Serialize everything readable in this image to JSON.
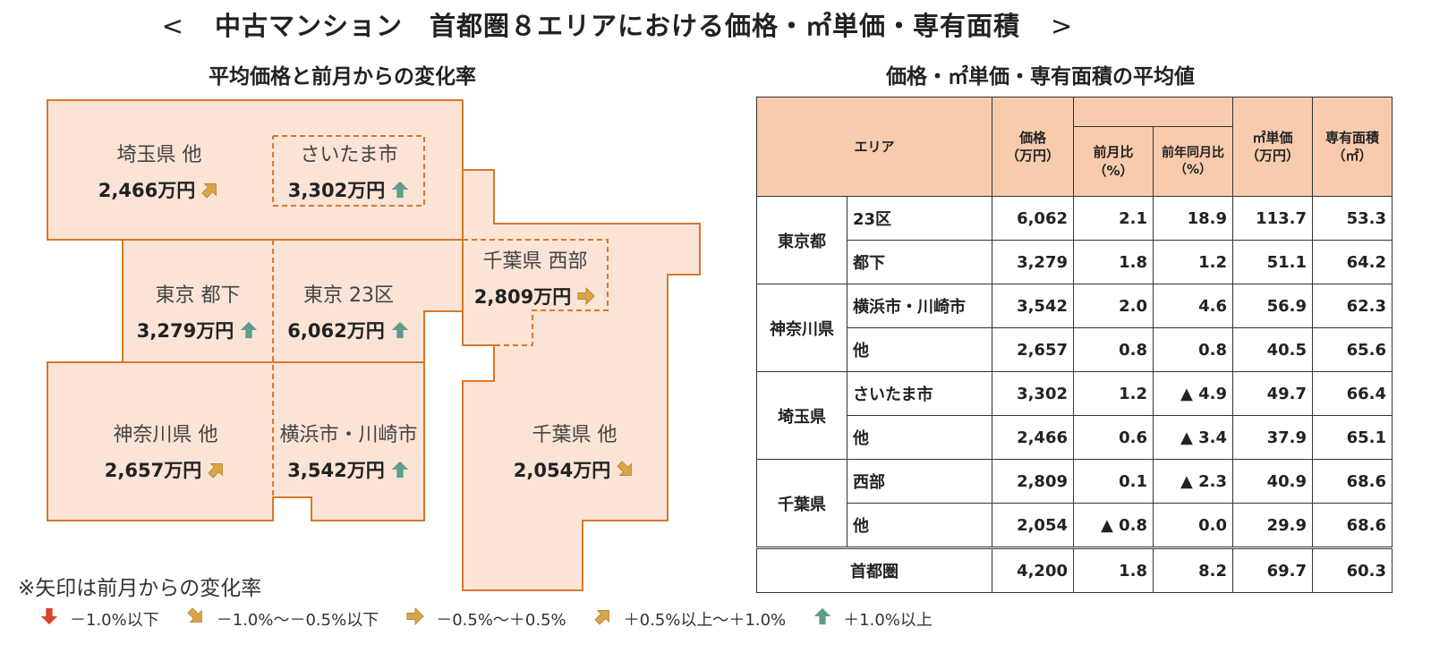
{
  "page_title": {
    "left_bracket": "<",
    "text": "中古マンション　首都圏８エリアにおける価格・㎡単価・専有面積",
    "right_bracket": ">"
  },
  "colors": {
    "region_fill": "#fbe3d6",
    "region_border": "#d9782a",
    "up_strong": "#5e9c8c",
    "up": "#d9a54a",
    "flat": "#d9a54a",
    "down": "#d9a54a",
    "down_strong": "#d8462a",
    "header_fill": "#f8cbad"
  },
  "chart_data": {
    "type": "map",
    "title": "平均価格と前月からの変化率",
    "regions": [
      {
        "key": "saitama-other",
        "name": "埼玉県 他",
        "price": "2,466万円",
        "trend": "up"
      },
      {
        "key": "saitama-city",
        "name": "さいたま市",
        "price": "3,302万円",
        "trend": "up_strong"
      },
      {
        "key": "tokyo-tokashita",
        "name": "東京 都下",
        "price": "3,279万円",
        "trend": "up_strong"
      },
      {
        "key": "tokyo-23",
        "name": "東京 23区",
        "price": "6,062万円",
        "trend": "up_strong"
      },
      {
        "key": "chiba-west",
        "name": "千葉県 西部",
        "price": "2,809万円",
        "trend": "flat"
      },
      {
        "key": "kanagawa-other",
        "name": "神奈川県 他",
        "price": "2,657万円",
        "trend": "up"
      },
      {
        "key": "yokohama-kawasaki",
        "name": "横浜市・川崎市",
        "price": "3,542万円",
        "trend": "up_strong"
      },
      {
        "key": "chiba-other",
        "name": "千葉県 他",
        "price": "2,054万円",
        "trend": "down"
      }
    ]
  },
  "note": "※矢印は前月からの変化率",
  "legend": [
    {
      "trend": "down_strong",
      "label": "－1.0%以下"
    },
    {
      "trend": "down",
      "label": "－1.0%～－0.5%以下"
    },
    {
      "trend": "flat",
      "label": "－0.5%～＋0.5%"
    },
    {
      "trend": "up",
      "label": "＋0.5%以上～＋1.0%"
    },
    {
      "trend": "up_strong",
      "label": "＋1.0%以上"
    }
  ],
  "table": {
    "title": "価格・㎡単価・専有面積の平均値",
    "headers": {
      "area": "エリア",
      "price": [
        "価格",
        "（万円）"
      ],
      "mom": [
        "前月比",
        "（%）"
      ],
      "yoy": [
        "前年同月比",
        "（%）"
      ],
      "unit_price": [
        "㎡単価",
        "（万円）"
      ],
      "floor_area": [
        "専有面積",
        "（㎡）"
      ]
    },
    "groups": [
      {
        "prefecture": "東京都",
        "rows": [
          {
            "area": "23区",
            "price": "6,062",
            "mom": "2.1",
            "yoy": "18.9",
            "unit_price": "113.7",
            "floor_area": "53.3"
          },
          {
            "area": "都下",
            "price": "3,279",
            "mom": "1.8",
            "yoy": "1.2",
            "unit_price": "51.1",
            "floor_area": "64.2"
          }
        ]
      },
      {
        "prefecture": "神奈川県",
        "rows": [
          {
            "area": "横浜市・川崎市",
            "price": "3,542",
            "mom": "2.0",
            "yoy": "4.6",
            "unit_price": "56.9",
            "floor_area": "62.3"
          },
          {
            "area": "他",
            "price": "2,657",
            "mom": "0.8",
            "yoy": "0.8",
            "unit_price": "40.5",
            "floor_area": "65.6"
          }
        ]
      },
      {
        "prefecture": "埼玉県",
        "rows": [
          {
            "area": "さいたま市",
            "price": "3,302",
            "mom": "1.2",
            "yoy": "▲ 4.9",
            "unit_price": "49.7",
            "floor_area": "66.4"
          },
          {
            "area": "他",
            "price": "2,466",
            "mom": "0.6",
            "yoy": "▲ 3.4",
            "unit_price": "37.9",
            "floor_area": "65.1"
          }
        ]
      },
      {
        "prefecture": "千葉県",
        "rows": [
          {
            "area": "西部",
            "price": "2,809",
            "mom": "0.1",
            "yoy": "▲ 2.3",
            "unit_price": "40.9",
            "floor_area": "68.6"
          },
          {
            "area": "他",
            "price": "2,054",
            "mom": "▲ 0.8",
            "yoy": "0.0",
            "unit_price": "29.9",
            "floor_area": "68.6"
          }
        ]
      }
    ],
    "total": {
      "area": "首都圏",
      "price": "4,200",
      "mom": "1.8",
      "yoy": "8.2",
      "unit_price": "69.7",
      "floor_area": "60.3"
    }
  }
}
